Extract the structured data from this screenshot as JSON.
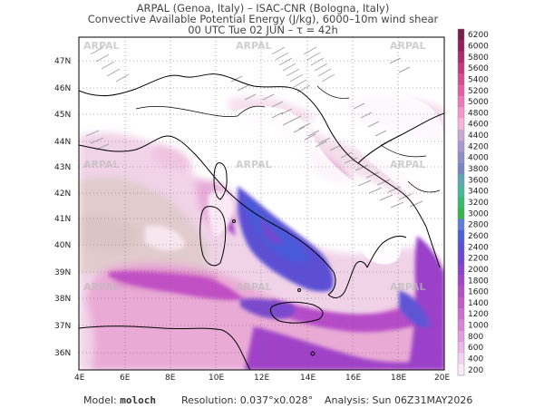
{
  "header": {
    "line1": "ARPAL (Genoa, Italy)  –  ISAC-CNR (Bologna, Italy)",
    "line2": "Convective Available Potential Energy (J/kg), 6000–10m wind shear",
    "line3": "00 UTC Tue 02 JUN  –  τ = 42h"
  },
  "watermark": "ARPAL",
  "map": {
    "lat_labels": [
      "47N",
      "46N",
      "45N",
      "44N",
      "43N",
      "42N",
      "41N",
      "40N",
      "39N",
      "38N",
      "37N",
      "36N"
    ],
    "lon_labels": [
      "4E",
      "6E",
      "8E",
      "10E",
      "12E",
      "14E",
      "16E",
      "18E",
      "20E"
    ]
  },
  "colorbar": {
    "levels": [
      "6200",
      "6000",
      "5800",
      "5600",
      "5400",
      "5200",
      "5000",
      "4800",
      "4600",
      "4400",
      "4200",
      "4000",
      "3800",
      "3600",
      "3400",
      "3200",
      "3000",
      "2800",
      "2600",
      "2400",
      "2200",
      "2000",
      "1800",
      "1600",
      "1400",
      "1200",
      "1000",
      "800",
      "600",
      "400",
      "200"
    ],
    "colors": [
      "#7a1d4a",
      "#93205a",
      "#ad2c6b",
      "#c53a7d",
      "#d84b8f",
      "#e560a3",
      "#ef79b8",
      "#f595ca",
      "#f7b3da",
      "#c9a9d6",
      "#a998cf",
      "#8e8ec9",
      "#7a86c3",
      "#5fa6b0",
      "#48b79d",
      "#3aba6f",
      "#39b64a",
      "#5b7fd9",
      "#4b5fd6",
      "#5c4fd4",
      "#6f47cf",
      "#8a44cc",
      "#a245c9",
      "#b54ec6",
      "#c45ac9",
      "#cf6ccf",
      "#d982d7",
      "#e29ae0",
      "#ecb6ea",
      "#f3cff0",
      "#fbe9f8"
    ]
  },
  "footer": {
    "model_label": "Model:",
    "model_value": "moloch",
    "resolution_label": "Resolution:",
    "resolution_value": "0.037°x0.028°",
    "analysis_label": "Analysis:",
    "analysis_value": "Sun 06Z31MAY2026"
  }
}
